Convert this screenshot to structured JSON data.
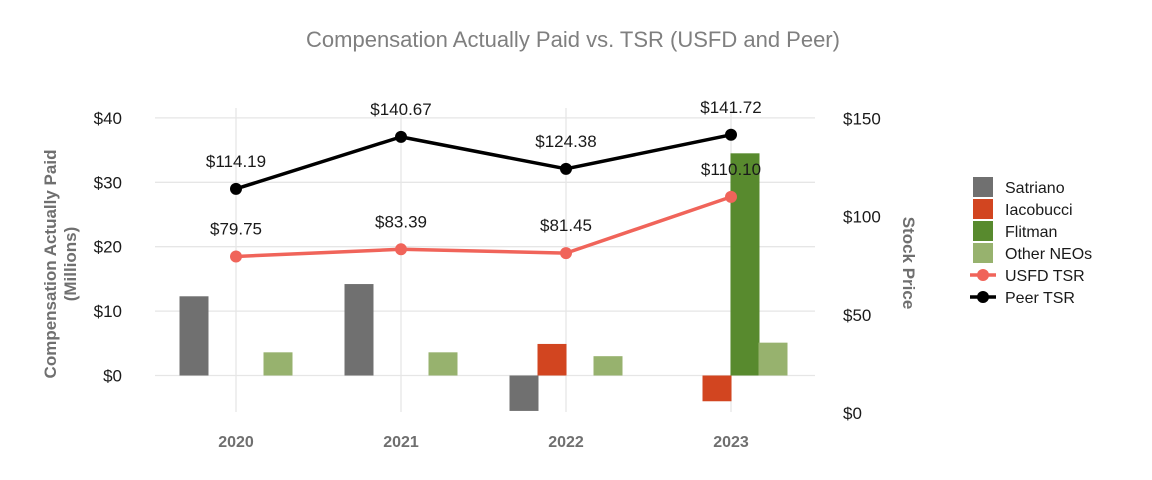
{
  "chart_data": {
    "type": "bar+line",
    "title": "Compensation Actually Paid vs. TSR (USFD and Peer)",
    "categories": [
      "2020",
      "2021",
      "2022",
      "2023"
    ],
    "y_left": {
      "label_line1": "Compensation Actually Paid",
      "label_line2": "(Millions)",
      "range": [
        -5.5,
        40
      ],
      "ticks": [
        0,
        10,
        20,
        30,
        40
      ],
      "tick_labels": [
        "$0",
        "$10",
        "$20",
        "$30",
        "$40"
      ]
    },
    "y_right": {
      "label": "Stock Price",
      "range": [
        0,
        150
      ],
      "ticks": [
        0,
        50,
        100,
        150
      ],
      "tick_labels": [
        "$0",
        "$50",
        "$100",
        "$150"
      ]
    },
    "bar_series": [
      {
        "name": "Satriano",
        "color": "#707070",
        "values": [
          12.3,
          14.2,
          -5.5,
          null
        ]
      },
      {
        "name": "Iacobucci",
        "color": "#d24520",
        "values": [
          null,
          null,
          4.9,
          -4.0
        ]
      },
      {
        "name": "Flitman",
        "color": "#588a2e",
        "values": [
          null,
          null,
          null,
          34.5
        ]
      },
      {
        "name": "Other NEOs",
        "color": "#97b26e",
        "values": [
          3.6,
          3.6,
          3.0,
          5.1
        ]
      }
    ],
    "line_series": [
      {
        "name": "USFD TSR",
        "color": "#f0645a",
        "values": [
          79.75,
          83.39,
          81.45,
          110.1
        ],
        "labels": [
          "$79.75",
          "$83.39",
          "$81.45",
          "$110.10"
        ]
      },
      {
        "name": "Peer TSR",
        "color": "#000000",
        "values": [
          114.19,
          140.67,
          124.38,
          141.72
        ],
        "labels": [
          "$114.19",
          "$140.67",
          "$124.38",
          "$141.72"
        ]
      }
    ],
    "legend": {
      "position": "right",
      "items": [
        {
          "label": "Satriano",
          "kind": "bar",
          "color": "#707070"
        },
        {
          "label": "Iacobucci",
          "kind": "bar",
          "color": "#d24520"
        },
        {
          "label": "Flitman",
          "kind": "bar",
          "color": "#588a2e"
        },
        {
          "label": "Other NEOs",
          "kind": "bar",
          "color": "#97b26e"
        },
        {
          "label": "USFD TSR",
          "kind": "line",
          "color": "#f0645a"
        },
        {
          "label": "Peer TSR",
          "kind": "line",
          "color": "#000000"
        }
      ]
    }
  }
}
